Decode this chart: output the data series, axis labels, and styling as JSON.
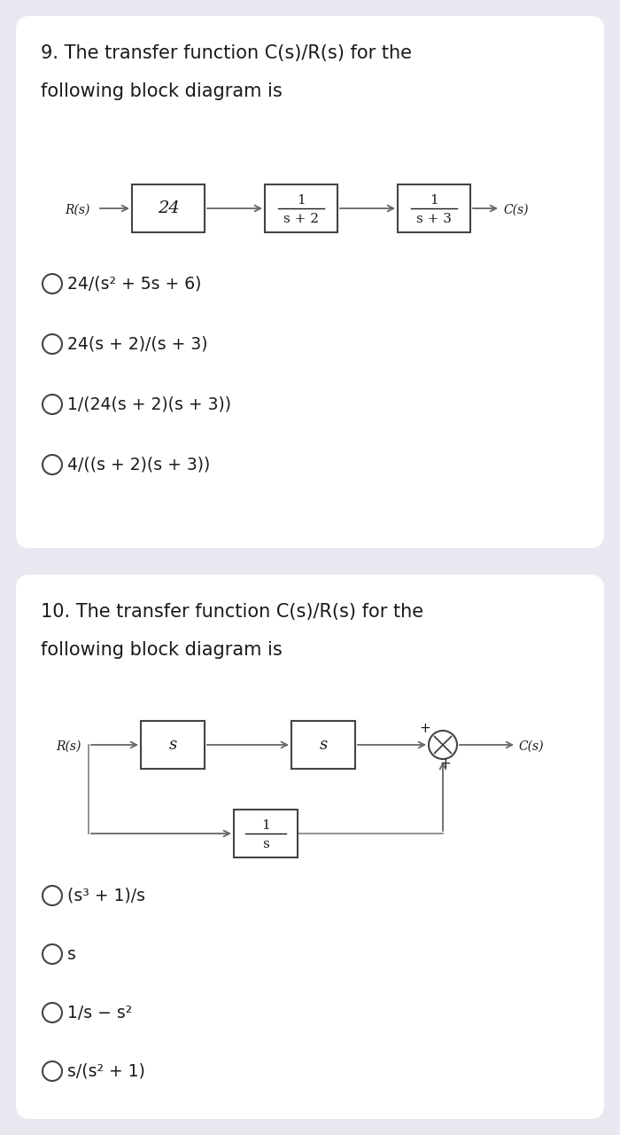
{
  "bg_color": "#e8e8f0",
  "card_color": "#ffffff",
  "text_color": "#1a1a1a",
  "q9": {
    "title_line1": "9. The transfer function C(s)/R(s) for the",
    "title_line2": "following block diagram is",
    "options": [
      "24/(s² + 5s + 6)",
      "24(s + 2)/(s + 3)",
      "1/(24(s + 2)(s + 3))",
      "4/((s + 2)(s + 3))"
    ]
  },
  "q10": {
    "title_line1": "10. The transfer function C(s)/R(s) for the",
    "title_line2": "following block diagram is",
    "options": [
      "(s³ + 1)/s",
      "s",
      "1/s − s²",
      "s/(s² + 1)"
    ]
  }
}
